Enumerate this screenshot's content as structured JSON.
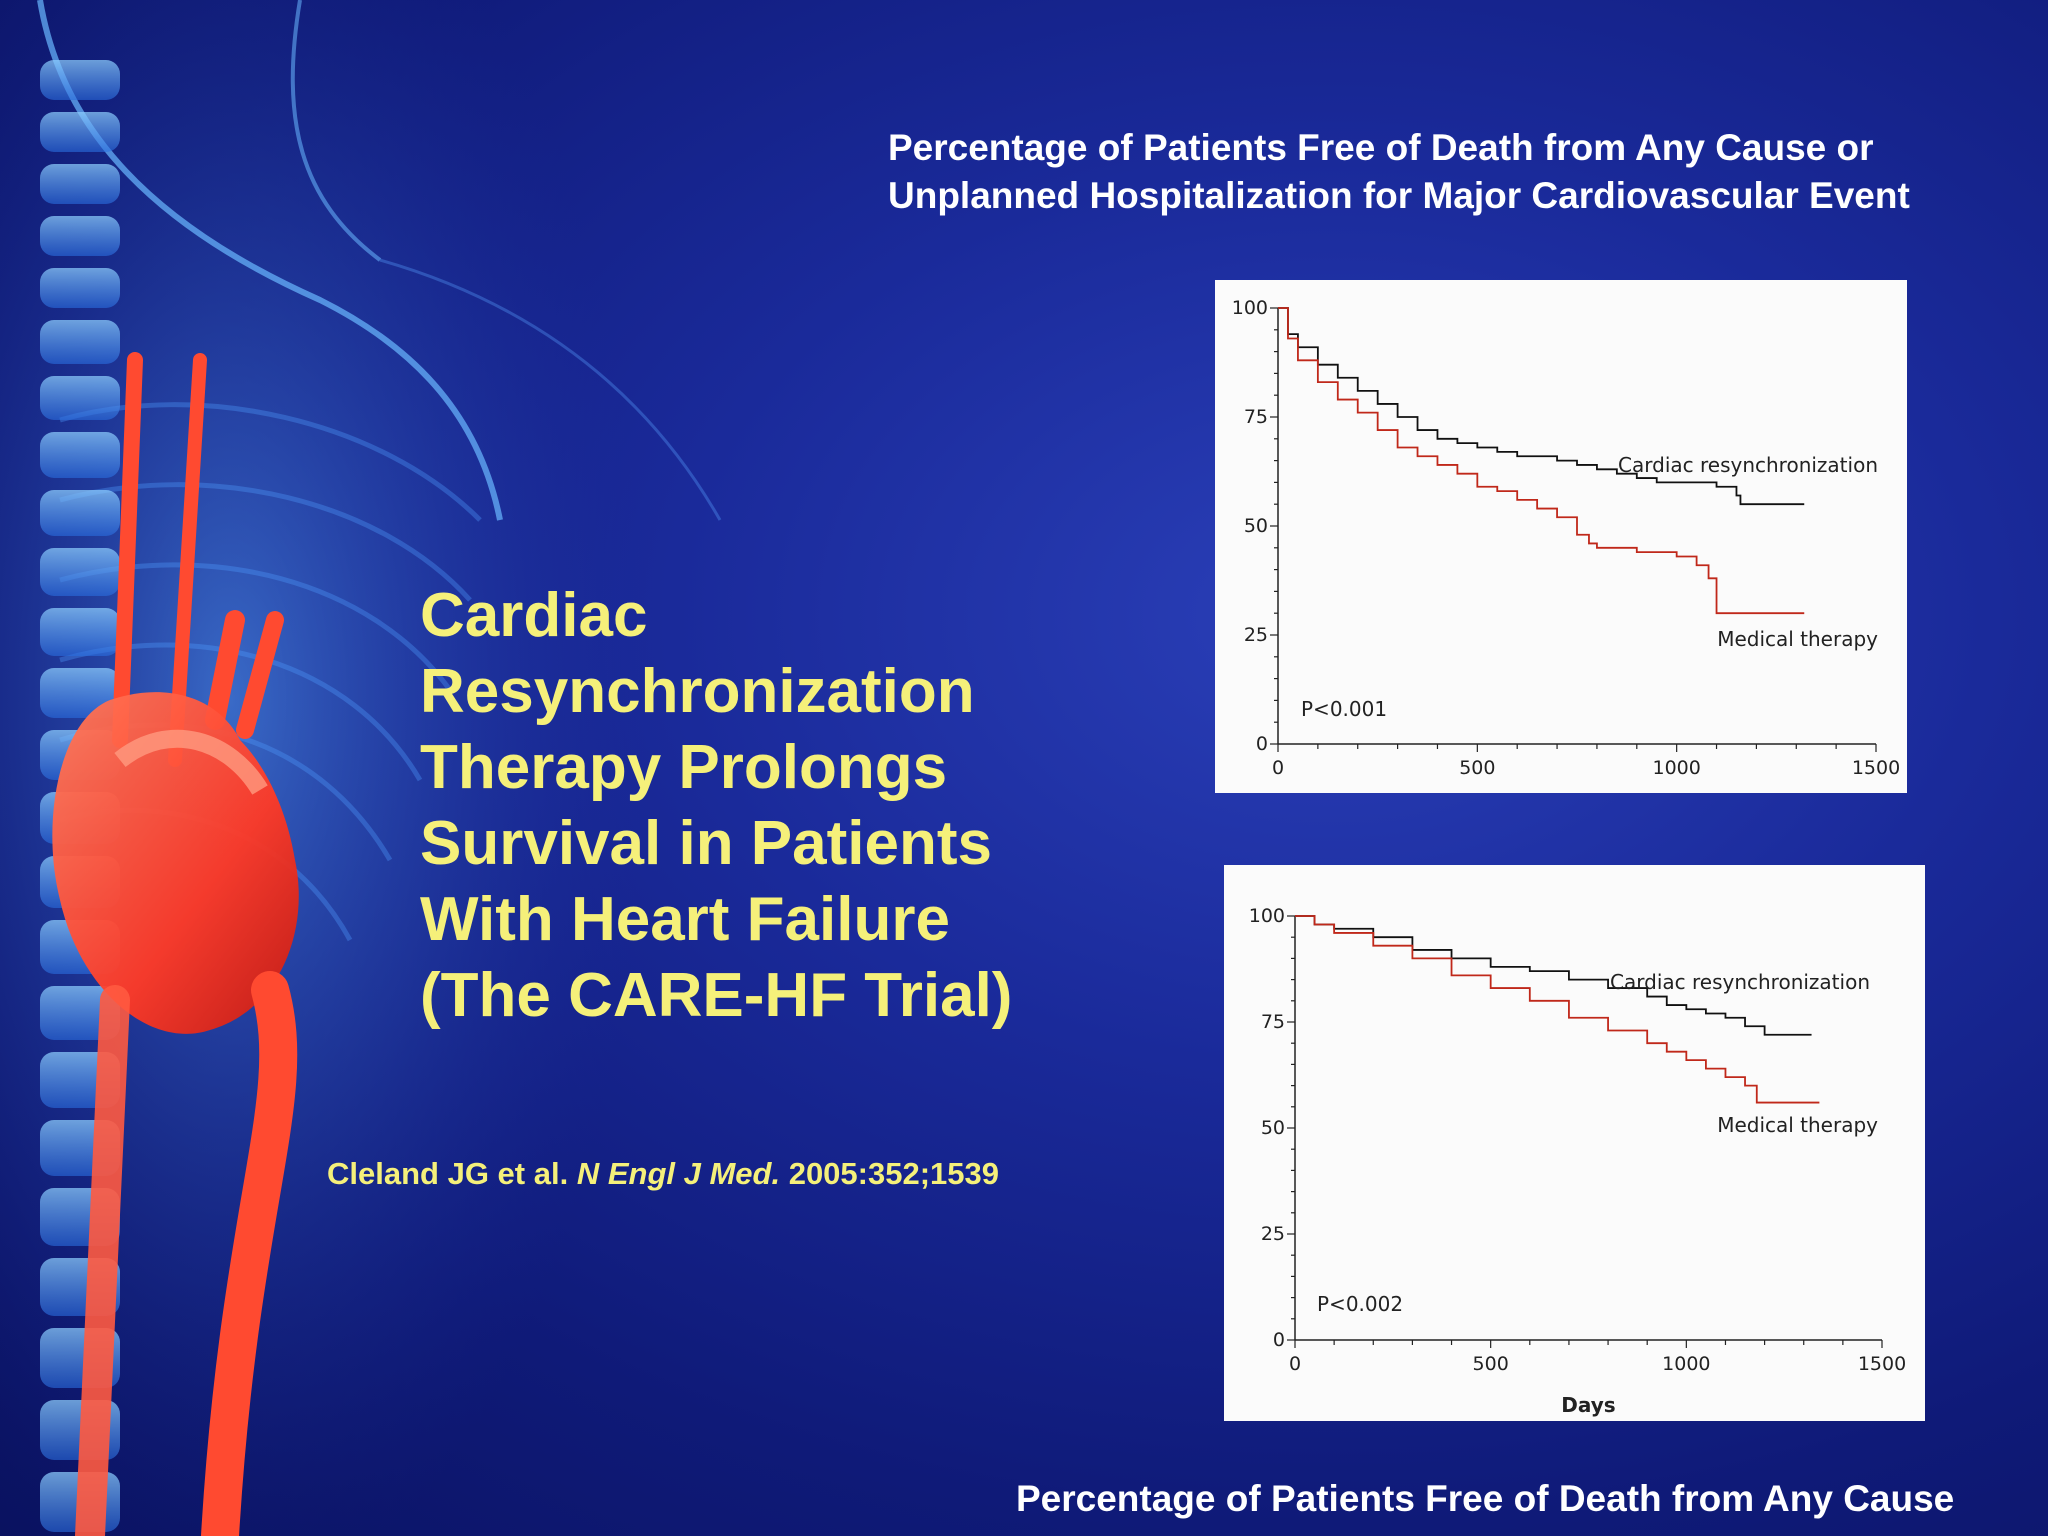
{
  "slide": {
    "title_lines": [
      "Cardiac",
      "Resynchronization",
      "Therapy Prolongs",
      "Survival in Patients",
      "With Heart Failure",
      "(The CARE-HF Trial)"
    ],
    "citation": {
      "authors": "Cleland JG et al.",
      "journal": "N Engl J Med.",
      "ref": "2005:352;1539"
    },
    "caption_top_lines": [
      "Percentage of Patients Free of Death from Any Cause or",
      "Unplanned Hospitalization for Major Cardiovascular Event"
    ],
    "caption_bottom": "Percentage of Patients Free of Death from Any Cause"
  },
  "colors": {
    "background": "#1a2a9a",
    "title": "#f5f07a",
    "caption": "#ffffff",
    "crt_line": "#111111",
    "medical_line": "#c0281a"
  },
  "chart_data": [
    {
      "type": "line",
      "title": "Percentage of Patients Free of Death from Any Cause or Unplanned Hospitalization for Major Cardiovascular Event",
      "xlabel": "",
      "ylabel": "",
      "xlim": [
        0,
        1500
      ],
      "ylim": [
        0,
        100
      ],
      "xticks": [
        "0",
        "500",
        "1000",
        "1500"
      ],
      "yticks": [
        "0",
        "25",
        "50",
        "75",
        "100"
      ],
      "annotation": "P<0.001",
      "series": [
        {
          "name": "Cardiac resynchronization",
          "color": "#111111",
          "x": [
            0,
            25,
            50,
            100,
            150,
            200,
            250,
            300,
            350,
            400,
            450,
            500,
            550,
            600,
            650,
            700,
            750,
            800,
            850,
            900,
            950,
            1000,
            1050,
            1100,
            1150,
            1160,
            1200,
            1250,
            1320
          ],
          "y": [
            100,
            94,
            91,
            87,
            84,
            81,
            78,
            75,
            72,
            70,
            69,
            68,
            67,
            66,
            66,
            65,
            64,
            63,
            62,
            61,
            60,
            60,
            60,
            59,
            57,
            55,
            55,
            55,
            55
          ]
        },
        {
          "name": "Medical therapy",
          "color": "#c0281a",
          "x": [
            0,
            25,
            50,
            100,
            150,
            200,
            250,
            300,
            350,
            400,
            450,
            500,
            550,
            600,
            650,
            700,
            750,
            780,
            800,
            850,
            900,
            950,
            1000,
            1050,
            1080,
            1100,
            1150,
            1200,
            1250,
            1320
          ],
          "y": [
            100,
            93,
            88,
            83,
            79,
            76,
            72,
            68,
            66,
            64,
            62,
            59,
            58,
            56,
            54,
            52,
            48,
            46,
            45,
            45,
            44,
            44,
            43,
            41,
            38,
            30,
            30,
            30,
            30,
            30
          ]
        }
      ]
    },
    {
      "type": "line",
      "title": "Percentage of Patients Free of Death from Any Cause",
      "xlabel": "Days",
      "ylabel": "",
      "xlim": [
        0,
        1500
      ],
      "ylim": [
        0,
        100
      ],
      "xticks": [
        "0",
        "500",
        "1000",
        "1500"
      ],
      "yticks": [
        "0",
        "25",
        "50",
        "75",
        "100"
      ],
      "annotation": "P<0.002",
      "series": [
        {
          "name": "Cardiac resynchronization",
          "color": "#111111",
          "x": [
            0,
            50,
            100,
            200,
            300,
            400,
            500,
            600,
            700,
            800,
            900,
            950,
            1000,
            1050,
            1100,
            1150,
            1200,
            1250,
            1320
          ],
          "y": [
            100,
            98,
            97,
            95,
            92,
            90,
            88,
            87,
            85,
            83,
            81,
            79,
            78,
            77,
            76,
            74,
            72,
            72,
            72
          ]
        },
        {
          "name": "Medical therapy",
          "color": "#c0281a",
          "x": [
            0,
            50,
            100,
            200,
            300,
            400,
            500,
            600,
            700,
            800,
            900,
            950,
            1000,
            1050,
            1100,
            1150,
            1180,
            1200,
            1250,
            1340
          ],
          "y": [
            100,
            98,
            96,
            93,
            90,
            86,
            83,
            80,
            76,
            73,
            70,
            68,
            66,
            64,
            62,
            60,
            56,
            56,
            56,
            56
          ]
        }
      ]
    }
  ]
}
